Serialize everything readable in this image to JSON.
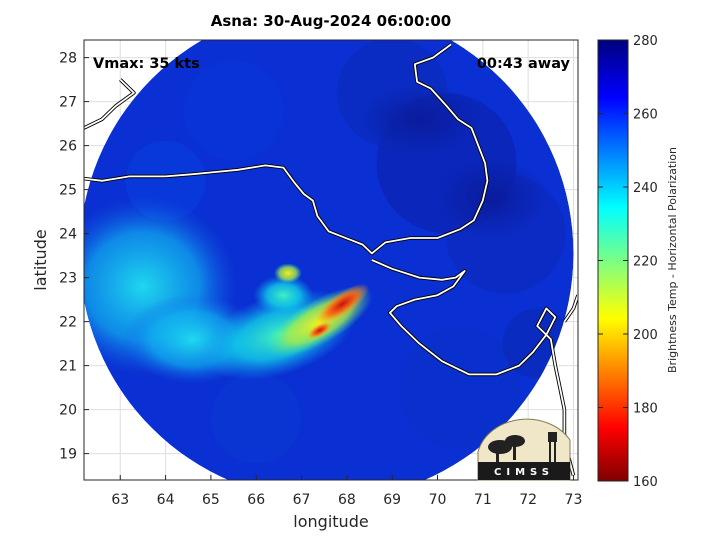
{
  "chart_data": {
    "type": "heatmap",
    "title": "Asna: 30-Aug-2024 06:00:00",
    "xlabel": "longitude",
    "ylabel": "latitude",
    "xlim": [
      62.2,
      73.1
    ],
    "ylim": [
      18.4,
      28.4
    ],
    "xticks": [
      63,
      64,
      65,
      66,
      67,
      68,
      69,
      70,
      71,
      72,
      73
    ],
    "yticks": [
      19,
      20,
      21,
      22,
      23,
      24,
      25,
      26,
      27,
      28
    ],
    "grid": true,
    "annotations": {
      "vmax": "Vmax: 35 kts",
      "time_away": "00:43 away"
    },
    "colorbar": {
      "label": "Brightness Temp - Horizontal Polarization",
      "min": 160,
      "max": 280,
      "ticks": [
        160,
        180,
        200,
        220,
        240,
        260,
        280
      ],
      "colormap": "jet"
    },
    "swath": {
      "center_lon": 67.55,
      "center_lat": 23.55,
      "radius_deg": 5.45
    },
    "features": [
      {
        "name": "convective-core",
        "lon": 67.9,
        "lat": 22.4,
        "value": 185
      },
      {
        "name": "rain-band",
        "lon": 67.2,
        "lat": 21.9,
        "value": 205
      },
      {
        "name": "outer-band",
        "lon": 66.4,
        "lat": 21.6,
        "value": 232
      },
      {
        "name": "west-swath",
        "lon": 63.4,
        "lat": 23.0,
        "value": 245
      },
      {
        "name": "background",
        "lon": 69.5,
        "lat": 25.5,
        "value": 270
      }
    ],
    "logo": "CIMSS"
  }
}
